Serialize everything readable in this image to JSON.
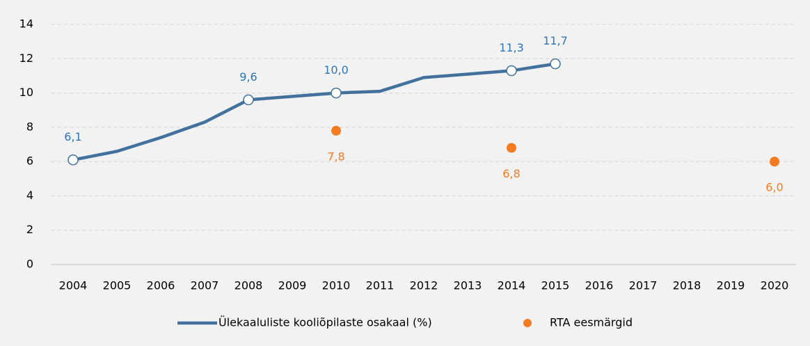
{
  "chart_data": {
    "type": "line",
    "categories": [
      "2004",
      "2005",
      "2006",
      "2007",
      "2008",
      "2009",
      "2010",
      "2011",
      "2012",
      "2013",
      "2014",
      "2015",
      "2016",
      "2017",
      "2018",
      "2019",
      "2020"
    ],
    "series": [
      {
        "name": "Ülekaaluliste kooliõpilaste osakaal (%)",
        "color": "#41719c",
        "label_color": "#2e75b6",
        "values": [
          6.1,
          6.6,
          7.4,
          8.3,
          9.6,
          9.8,
          10.0,
          10.1,
          10.9,
          11.1,
          11.3,
          11.7,
          null,
          null,
          null,
          null,
          null
        ],
        "value_labels": [
          "6,1",
          null,
          null,
          null,
          "9,6",
          null,
          "10,0",
          null,
          null,
          null,
          "11,3",
          "11,7",
          null,
          null,
          null,
          null,
          null
        ]
      },
      {
        "name": "RTA eesmärgid",
        "color": "#f47b20",
        "label_color": "#f47b20",
        "markers_only": true,
        "values": [
          null,
          null,
          null,
          null,
          null,
          null,
          7.8,
          null,
          null,
          null,
          6.8,
          null,
          null,
          null,
          null,
          null,
          6.0
        ],
        "value_labels": [
          null,
          null,
          null,
          null,
          null,
          null,
          "7,8",
          null,
          null,
          null,
          "6,8",
          null,
          null,
          null,
          null,
          null,
          "6,0"
        ]
      }
    ],
    "ylim": [
      0,
      14
    ],
    "yticks": [
      0,
      2,
      4,
      6,
      8,
      10,
      12,
      14
    ],
    "grid": true,
    "legend": "bottom"
  }
}
